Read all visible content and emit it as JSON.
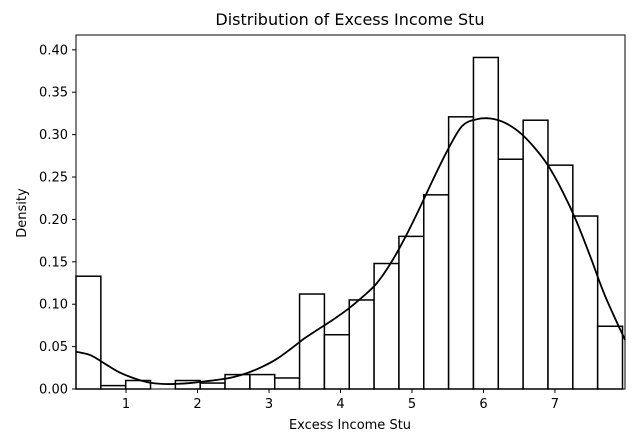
{
  "chart_data": {
    "type": "bar",
    "title": "Distribution of Excess Income Stu",
    "xlabel": "Excess Income Stu",
    "ylabel": "Density",
    "xlim": [
      0.3,
      7.98
    ],
    "ylim": [
      0.0,
      0.4175
    ],
    "xticks": [
      1,
      2,
      3,
      4,
      5,
      6,
      7
    ],
    "yticks": [
      0.0,
      0.05,
      0.1,
      0.15,
      0.2,
      0.25,
      0.3,
      0.35,
      0.4
    ],
    "ytick_labels": [
      "0.00",
      "0.05",
      "0.10",
      "0.15",
      "0.20",
      "0.25",
      "0.30",
      "0.35",
      "0.40"
    ],
    "grid": false,
    "legend": "none",
    "histogram": {
      "bin_start": 0.3,
      "bin_width": 0.3475,
      "densities": [
        0.133,
        0.004,
        0.01,
        0.0,
        0.01,
        0.007,
        0.017,
        0.017,
        0.013,
        0.112,
        0.064,
        0.105,
        0.148,
        0.18,
        0.229,
        0.321,
        0.391,
        0.271,
        0.317,
        0.264,
        0.204,
        0.074
      ]
    },
    "kde": {
      "x": [
        0.3,
        0.5,
        0.7,
        0.9,
        1.1,
        1.3,
        1.5,
        1.7,
        1.9,
        2.1,
        2.3,
        2.5,
        2.7,
        2.9,
        3.1,
        3.3,
        3.5,
        3.7,
        3.9,
        4.1,
        4.3,
        4.5,
        4.7,
        4.9,
        5.1,
        5.3,
        5.5,
        5.7,
        5.9,
        6.1,
        6.3,
        6.5,
        6.7,
        6.9,
        7.1,
        7.3,
        7.5,
        7.7,
        7.98
      ],
      "y": [
        0.044,
        0.04,
        0.03,
        0.02,
        0.013,
        0.008,
        0.006,
        0.006,
        0.007,
        0.009,
        0.011,
        0.014,
        0.019,
        0.026,
        0.035,
        0.047,
        0.06,
        0.071,
        0.082,
        0.094,
        0.108,
        0.124,
        0.148,
        0.178,
        0.212,
        0.248,
        0.282,
        0.31,
        0.318,
        0.319,
        0.314,
        0.303,
        0.286,
        0.264,
        0.234,
        0.198,
        0.155,
        0.11,
        0.058
      ]
    }
  }
}
